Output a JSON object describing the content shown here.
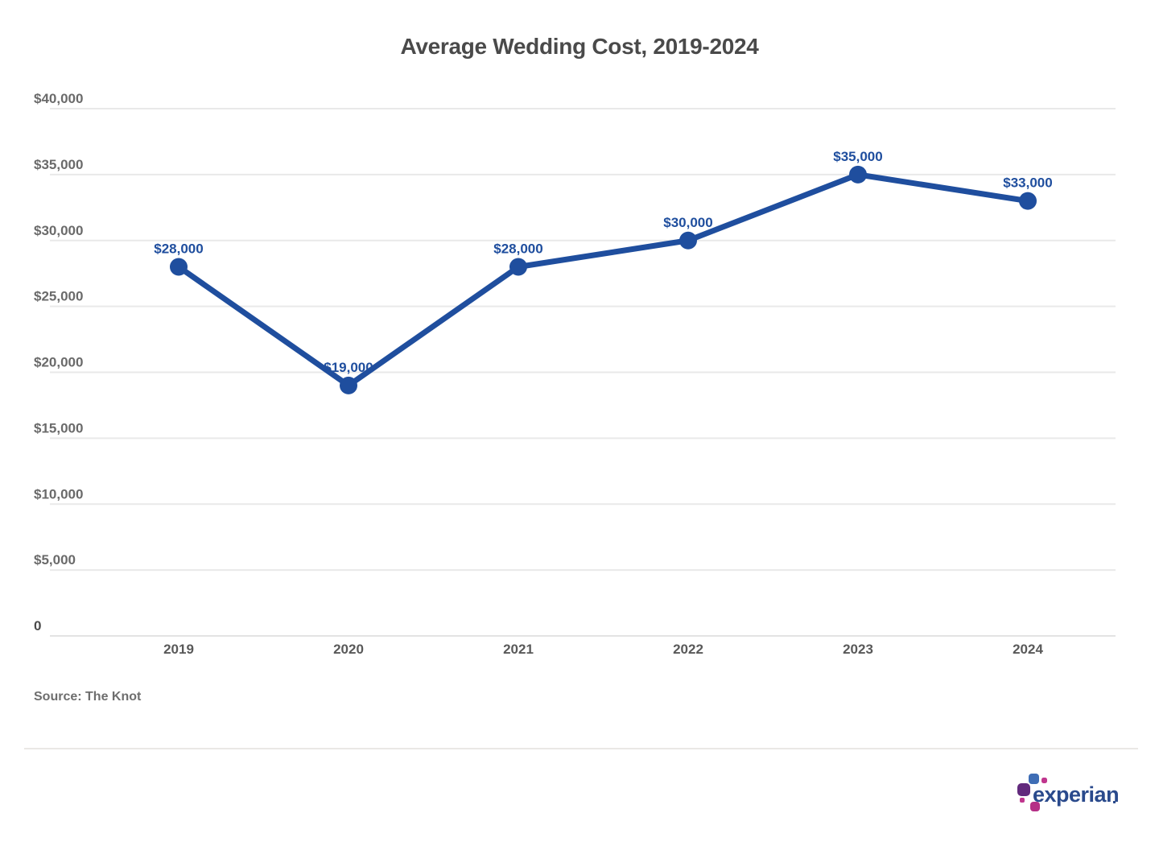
{
  "header": {
    "title": "Average Wedding Cost, 2019-2024"
  },
  "chart_data": {
    "type": "line",
    "title": "Average Wedding Cost, 2019-2024",
    "categories": [
      "2019",
      "2020",
      "2021",
      "2022",
      "2023",
      "2024"
    ],
    "values": [
      28000,
      19000,
      28000,
      30000,
      35000,
      33000
    ],
    "point_labels": [
      "$28,000",
      "$19,000",
      "$28,000",
      "$30,000",
      "$35,000",
      "$33,000"
    ],
    "y_ticks": [
      0,
      5000,
      10000,
      15000,
      20000,
      25000,
      30000,
      35000,
      40000
    ],
    "y_tick_labels": [
      "0",
      "$5,000",
      "$10,000",
      "$15,000",
      "$20,000",
      "$25,000",
      "$30,000",
      "$35,000",
      "$40,000"
    ],
    "ylim": [
      0,
      40000
    ],
    "xlabel": "",
    "ylabel": "",
    "grid": true,
    "legend_position": "none",
    "line_color": "#1f4e9e",
    "marker_color": "#1f4e9e",
    "data_label_color": "#1f4e9e",
    "grid_color": "#e9e9e9",
    "zero_line_color": "#e3e3e3",
    "y_tick_color": "#6a6a6a",
    "zero_tick_color": "#4b4b4b",
    "x_tick_color": "#595959"
  },
  "footer": {
    "source": "Source: The Knot"
  },
  "logo": {
    "text": "experian"
  }
}
